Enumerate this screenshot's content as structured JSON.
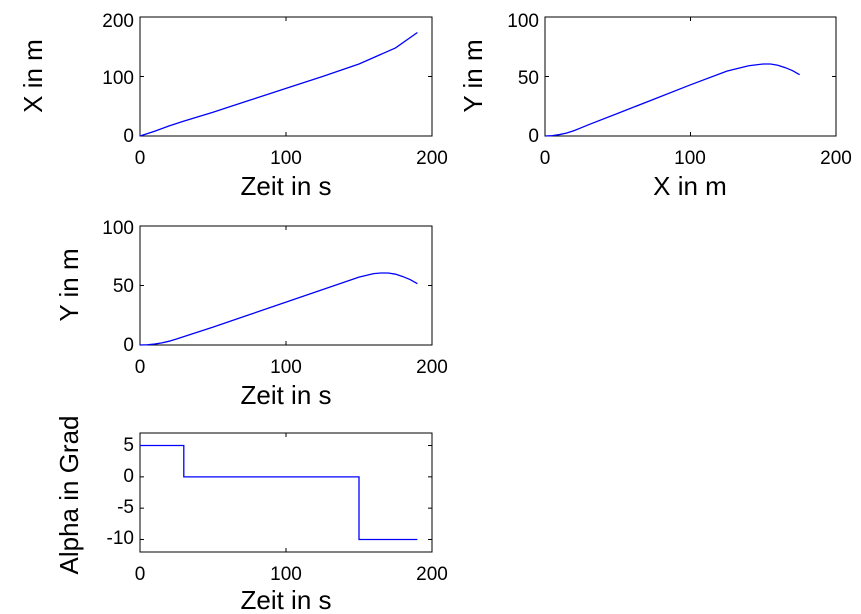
{
  "figure": {
    "line_color": "#0000ff"
  },
  "chart_data": [
    {
      "type": "line",
      "title": "",
      "xlabel": "Zeit in s",
      "ylabel": "X in m",
      "xlim": [
        0,
        200
      ],
      "ylim": [
        0,
        200
      ],
      "xticks": [
        0,
        100,
        200
      ],
      "yticks": [
        0,
        100,
        200
      ],
      "xtick_labels": [
        "0",
        "100",
        "200"
      ],
      "ytick_labels": [
        "0",
        "100",
        "200"
      ],
      "grid": false,
      "series": [
        {
          "x": [
            0,
            10,
            20,
            30,
            50,
            75,
            100,
            125,
            150,
            175,
            190
          ],
          "y": [
            0,
            8,
            17,
            25,
            40,
            60,
            80,
            100,
            121,
            148,
            174
          ]
        }
      ]
    },
    {
      "type": "line",
      "title": "",
      "xlabel": "X in m",
      "ylabel": "Y in m",
      "xlim": [
        0,
        200
      ],
      "ylim": [
        0,
        100
      ],
      "xticks": [
        0,
        100,
        200
      ],
      "yticks": [
        0,
        50,
        100
      ],
      "xtick_labels": [
        "0",
        "100",
        "200"
      ],
      "ytick_labels": [
        "0",
        "50",
        "100"
      ],
      "grid": false,
      "series": [
        {
          "x": [
            0,
            5,
            10,
            15,
            20,
            25,
            30,
            50,
            75,
            100,
            125,
            140,
            150,
            155,
            160,
            165,
            170,
            175
          ],
          "y": [
            0,
            0.3,
            1.2,
            2.5,
            4.5,
            7,
            9.5,
            19,
            31,
            43,
            54.5,
            59,
            60.5,
            60.5,
            59.5,
            57.5,
            55,
            51.5
          ]
        }
      ]
    },
    {
      "type": "line",
      "title": "",
      "xlabel": "Zeit in s",
      "ylabel": "Y in m",
      "xlim": [
        0,
        200
      ],
      "ylim": [
        0,
        100
      ],
      "xticks": [
        0,
        100,
        200
      ],
      "yticks": [
        0,
        50,
        100
      ],
      "xtick_labels": [
        "0",
        "100",
        "200"
      ],
      "ytick_labels": [
        "0",
        "50",
        "100"
      ],
      "grid": false,
      "series": [
        {
          "x": [
            0,
            5,
            10,
            15,
            20,
            25,
            30,
            50,
            75,
            100,
            125,
            150,
            160,
            165,
            170,
            175,
            180,
            185,
            190
          ],
          "y": [
            0,
            0.2,
            0.8,
            1.8,
            3.2,
            5,
            7,
            15,
            25.5,
            36,
            46.5,
            57,
            60,
            60.5,
            60.5,
            59.5,
            57.5,
            55,
            51.5
          ]
        }
      ]
    },
    {
      "type": "line",
      "title": "",
      "xlabel": "Zeit in s",
      "ylabel": "Alpha in Grad",
      "xlim": [
        0,
        200
      ],
      "ylim": [
        -12,
        7
      ],
      "xticks": [
        0,
        100,
        200
      ],
      "yticks": [
        5,
        0,
        -5,
        -10
      ],
      "xtick_labels": [
        "0",
        "100",
        "200"
      ],
      "ytick_labels": [
        "5",
        "0",
        "-5",
        "-10"
      ],
      "grid": false,
      "series": [
        {
          "x": [
            0,
            30,
            30,
            150,
            150,
            190
          ],
          "y": [
            5,
            5,
            0,
            0,
            -10,
            -10
          ]
        }
      ]
    }
  ]
}
